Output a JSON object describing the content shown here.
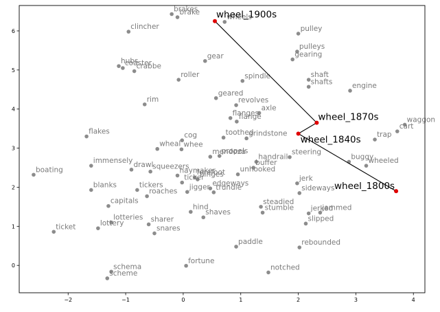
{
  "chart_data": {
    "type": "scatter",
    "title": "",
    "xlabel": "",
    "ylabel": "",
    "xlim": [
      -2.85,
      4.2
    ],
    "ylim": [
      -0.7,
      6.65
    ],
    "xticks": [
      -2,
      -1,
      0,
      1,
      2,
      3,
      4
    ],
    "yticks": [
      0,
      1,
      2,
      3,
      4,
      5,
      6
    ],
    "grid": false,
    "colors": {
      "words": "#8c8c8c",
      "path_points": "#e00000",
      "path_line": "#000000",
      "word_text": "#7a7a7a",
      "path_text": "#000000"
    },
    "words": [
      {
        "label": "brakes",
        "x": -0.2,
        "y": 6.43
      },
      {
        "label": "brake",
        "x": -0.1,
        "y": 6.35
      },
      {
        "label": "wheels",
        "x": 0.72,
        "y": 6.23
      },
      {
        "label": "clincher",
        "x": -0.95,
        "y": 5.98
      },
      {
        "label": "pulley",
        "x": 2.0,
        "y": 5.93
      },
      {
        "label": "pulleys",
        "x": 1.98,
        "y": 5.47
      },
      {
        "label": "gearing",
        "x": 1.9,
        "y": 5.27
      },
      {
        "label": "gear",
        "x": 0.38,
        "y": 5.23
      },
      {
        "label": "hubs",
        "x": -1.12,
        "y": 5.1
      },
      {
        "label": "coaster",
        "x": -1.05,
        "y": 5.05
      },
      {
        "label": "crabbe",
        "x": -0.85,
        "y": 4.97
      },
      {
        "label": "roller",
        "x": -0.08,
        "y": 4.75
      },
      {
        "label": "spindle",
        "x": 1.03,
        "y": 4.72
      },
      {
        "label": "shaft",
        "x": 2.18,
        "y": 4.75
      },
      {
        "label": "shafts",
        "x": 2.18,
        "y": 4.57
      },
      {
        "label": "engine",
        "x": 2.9,
        "y": 4.47
      },
      {
        "label": "geared",
        "x": 0.57,
        "y": 4.28
      },
      {
        "label": "rim",
        "x": -0.67,
        "y": 4.12
      },
      {
        "label": "revolves",
        "x": 0.92,
        "y": 4.1
      },
      {
        "label": "axle",
        "x": 1.32,
        "y": 3.9
      },
      {
        "label": "flanges",
        "x": 0.82,
        "y": 3.77
      },
      {
        "label": "flange",
        "x": 0.93,
        "y": 3.68
      },
      {
        "label": "waggon",
        "x": 3.85,
        "y": 3.6
      },
      {
        "label": "trap",
        "x": 3.33,
        "y": 3.22
      },
      {
        "label": "cart",
        "x": 3.72,
        "y": 3.43
      },
      {
        "label": "toothed",
        "x": 0.7,
        "y": 3.27
      },
      {
        "label": "grindstone",
        "x": 1.1,
        "y": 3.25
      },
      {
        "label": "flakes",
        "x": -1.68,
        "y": 3.3
      },
      {
        "label": "wheal",
        "x": -0.45,
        "y": 2.98
      },
      {
        "label": "cog",
        "x": -0.02,
        "y": 3.2
      },
      {
        "label": "whee",
        "x": -0.03,
        "y": 2.97
      },
      {
        "label": "propels",
        "x": 0.63,
        "y": 2.8
      },
      {
        "label": "mendoza",
        "x": 0.47,
        "y": 2.78
      },
      {
        "label": "steering",
        "x": 1.85,
        "y": 2.77
      },
      {
        "label": "buggy",
        "x": 2.88,
        "y": 2.65
      },
      {
        "label": "wheeled",
        "x": 3.18,
        "y": 2.55
      },
      {
        "label": "handrail",
        "x": 1.27,
        "y": 2.65
      },
      {
        "label": "immensely",
        "x": -1.6,
        "y": 2.55
      },
      {
        "label": "drawl",
        "x": -0.9,
        "y": 2.45
      },
      {
        "label": "squeezers",
        "x": -0.57,
        "y": 2.4
      },
      {
        "label": "buffer",
        "x": 1.22,
        "y": 2.5
      },
      {
        "label": "forefoot",
        "x": 0.2,
        "y": 2.25
      },
      {
        "label": "haymaker",
        "x": -0.1,
        "y": 2.3
      },
      {
        "label": "boating",
        "x": -2.6,
        "y": 2.32
      },
      {
        "label": "unhooked",
        "x": 0.95,
        "y": 2.33
      },
      {
        "label": "binges",
        "x": 0.25,
        "y": 2.2
      },
      {
        "label": "ticker",
        "x": -0.02,
        "y": 2.12
      },
      {
        "label": "jerk",
        "x": 1.98,
        "y": 2.1
      },
      {
        "label": "edgeways",
        "x": 0.47,
        "y": 1.97
      },
      {
        "label": "blanks",
        "x": -1.6,
        "y": 1.93
      },
      {
        "label": "tickers",
        "x": -0.8,
        "y": 1.93
      },
      {
        "label": "jigger",
        "x": 0.07,
        "y": 1.88
      },
      {
        "label": "trundle",
        "x": 0.53,
        "y": 1.87
      },
      {
        "label": "sideways",
        "x": 2.02,
        "y": 1.85
      },
      {
        "label": "roaches",
        "x": -0.63,
        "y": 1.77
      },
      {
        "label": "capitals",
        "x": -1.3,
        "y": 1.52
      },
      {
        "label": "steadied",
        "x": 1.35,
        "y": 1.5
      },
      {
        "label": "hind",
        "x": 0.13,
        "y": 1.37
      },
      {
        "label": "shaves",
        "x": 0.35,
        "y": 1.23
      },
      {
        "label": "stumble",
        "x": 1.38,
        "y": 1.35
      },
      {
        "label": "jammed",
        "x": 2.38,
        "y": 1.35
      },
      {
        "label": "jerked",
        "x": 2.18,
        "y": 1.33
      },
      {
        "label": "sharer",
        "x": -0.6,
        "y": 1.05
      },
      {
        "label": "lotteries",
        "x": -1.25,
        "y": 1.1
      },
      {
        "label": "slipped",
        "x": 2.13,
        "y": 1.07
      },
      {
        "label": "snares",
        "x": -0.5,
        "y": 0.82
      },
      {
        "label": "ticket",
        "x": -2.25,
        "y": 0.86
      },
      {
        "label": "lottery",
        "x": -1.48,
        "y": 0.95
      },
      {
        "label": "paddle",
        "x": 0.92,
        "y": 0.48
      },
      {
        "label": "rebounded",
        "x": 2.02,
        "y": 0.46
      },
      {
        "label": "fortune",
        "x": 0.05,
        "y": -0.01
      },
      {
        "label": "schema",
        "x": -1.25,
        "y": -0.16
      },
      {
        "label": "notched",
        "x": 1.48,
        "y": -0.18
      },
      {
        "label": "scheme",
        "x": -1.32,
        "y": -0.33
      }
    ],
    "path": [
      {
        "label": "wheel_1900s",
        "x": 0.55,
        "y": 6.25
      },
      {
        "label": "wheel_1870s",
        "x": 2.32,
        "y": 3.65
      },
      {
        "label": "wheel_1840s",
        "x": 2.0,
        "y": 3.37
      },
      {
        "label": "wheel_1800s",
        "x": 3.7,
        "y": 1.9
      }
    ]
  }
}
